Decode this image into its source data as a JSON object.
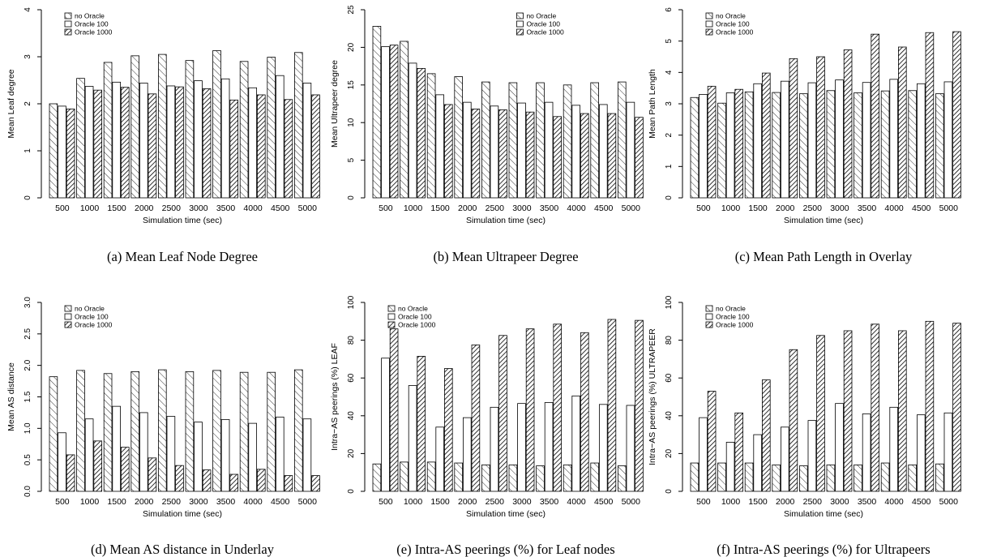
{
  "chart_data": [
    {
      "type": "bar",
      "caption": "(a) Mean Leaf Node Degree",
      "xlabel": "Simulation time (sec)",
      "ylabel": "Mean Leaf degree",
      "ylim": [
        0,
        4
      ],
      "yticks": [
        "0",
        "1",
        "2",
        "3",
        "4"
      ],
      "categories": [
        "500",
        "1000",
        "1500",
        "2000",
        "2500",
        "3000",
        "3500",
        "4000",
        "4500",
        "5000"
      ],
      "legend_position": "top-left",
      "series": [
        {
          "name": "no Oracle",
          "values": [
            2.0,
            2.54,
            2.88,
            3.02,
            3.05,
            2.92,
            3.13,
            2.9,
            2.99,
            3.09
          ]
        },
        {
          "name": "Oracle 100",
          "values": [
            1.95,
            2.37,
            2.46,
            2.44,
            2.38,
            2.49,
            2.53,
            2.34,
            2.6,
            2.44
          ]
        },
        {
          "name": "Oracle 1000",
          "values": [
            1.89,
            2.29,
            2.35,
            2.21,
            2.36,
            2.32,
            2.08,
            2.19,
            2.09,
            2.19
          ]
        }
      ]
    },
    {
      "type": "bar",
      "caption": "(b) Mean Ultrapeer Degree",
      "xlabel": "Simulation time (sec)",
      "ylabel": "Mean Ultrapeer degree",
      "ylim": [
        0,
        25
      ],
      "yticks": [
        "0",
        "5",
        "10",
        "15",
        "20",
        "25"
      ],
      "categories": [
        "500",
        "1000",
        "1500",
        "2000",
        "2500",
        "3000",
        "3500",
        "4000",
        "4500",
        "5000"
      ],
      "legend_position": "top-right",
      "series": [
        {
          "name": "no Oracle",
          "values": [
            22.8,
            20.8,
            16.5,
            16.1,
            15.4,
            15.3,
            15.3,
            15.0,
            15.3,
            15.4
          ]
        },
        {
          "name": "Oracle 100",
          "values": [
            20.1,
            17.9,
            13.7,
            12.7,
            12.2,
            12.6,
            12.7,
            12.3,
            12.4,
            12.7
          ]
        },
        {
          "name": "Oracle 1000",
          "values": [
            20.3,
            17.2,
            12.4,
            11.8,
            11.7,
            11.4,
            10.8,
            11.2,
            11.2,
            10.7
          ]
        }
      ]
    },
    {
      "type": "bar",
      "caption": "(c) Mean Path Length in Overlay",
      "xlabel": "Simulation time (sec)",
      "ylabel": "Mean Path Length",
      "ylim": [
        0,
        6
      ],
      "yticks": [
        "0",
        "1",
        "2",
        "3",
        "4",
        "5",
        "6"
      ],
      "categories": [
        "500",
        "1000",
        "1500",
        "2000",
        "2500",
        "3000",
        "3500",
        "4000",
        "4500",
        "5000"
      ],
      "legend_position": "top-left",
      "series": [
        {
          "name": "no Oracle",
          "values": [
            3.2,
            3.02,
            3.38,
            3.36,
            3.32,
            3.42,
            3.35,
            3.41,
            3.42,
            3.32
          ]
        },
        {
          "name": "Oracle 100",
          "values": [
            3.3,
            3.35,
            3.64,
            3.72,
            3.67,
            3.76,
            3.68,
            3.78,
            3.64,
            3.7
          ]
        },
        {
          "name": "Oracle 1000",
          "values": [
            3.56,
            3.46,
            3.98,
            4.44,
            4.5,
            4.72,
            5.22,
            4.81,
            5.27,
            5.3
          ]
        }
      ]
    },
    {
      "type": "bar",
      "caption": "(d) Mean AS distance in Underlay",
      "xlabel": "Simulation time (sec)",
      "ylabel": "Mean AS distance",
      "ylim": [
        0,
        3
      ],
      "yticks": [
        "0.0",
        "0.5",
        "1.0",
        "1.5",
        "2.0",
        "2.5",
        "3.0"
      ],
      "categories": [
        "500",
        "1000",
        "1500",
        "2000",
        "2500",
        "3000",
        "3500",
        "4000",
        "4500",
        "5000"
      ],
      "legend_position": "top-left",
      "series": [
        {
          "name": "no Oracle",
          "values": [
            1.82,
            1.92,
            1.87,
            1.9,
            1.93,
            1.9,
            1.92,
            1.89,
            1.89,
            1.93
          ]
        },
        {
          "name": "Oracle 100",
          "values": [
            0.93,
            1.15,
            1.35,
            1.25,
            1.19,
            1.1,
            1.14,
            1.08,
            1.18,
            1.15
          ]
        },
        {
          "name": "Oracle 1000",
          "values": [
            0.58,
            0.8,
            0.7,
            0.53,
            0.41,
            0.34,
            0.27,
            0.35,
            0.25,
            0.25
          ]
        }
      ]
    },
    {
      "type": "bar",
      "caption": "(e) Intra-AS peerings (%) for Leaf nodes",
      "xlabel": "Simulation time (sec)",
      "ylabel": "Intra−AS peerings (%) LEAF",
      "ylim": [
        0,
        100
      ],
      "yticks": [
        "0",
        "20",
        "40",
        "60",
        "80",
        "100"
      ],
      "categories": [
        "500",
        "1000",
        "1500",
        "2000",
        "2500",
        "3000",
        "3500",
        "4000",
        "4500",
        "5000"
      ],
      "legend_position": "top-left",
      "series": [
        {
          "name": "no Oracle",
          "values": [
            14.5,
            15.5,
            15.5,
            15,
            14,
            14,
            13.5,
            14,
            15,
            13.5
          ]
        },
        {
          "name": "Oracle 100",
          "values": [
            70.5,
            56,
            34,
            39,
            44.5,
            46.5,
            47,
            50.5,
            46,
            45.5
          ]
        },
        {
          "name": "Oracle 1000",
          "values": [
            86,
            71.5,
            65,
            77.5,
            82.5,
            86,
            88.5,
            84,
            91,
            90.5
          ]
        }
      ]
    },
    {
      "type": "bar",
      "caption": "(f) Intra-AS peerings (%) for Ultrapeers",
      "xlabel": "Simulation time (sec)",
      "ylabel": "Intra−AS peerings (%) ULTRAPEER",
      "ylim": [
        0,
        100
      ],
      "yticks": [
        "0",
        "20",
        "40",
        "60",
        "80",
        "100"
      ],
      "categories": [
        "500",
        "1000",
        "1500",
        "2000",
        "2500",
        "3000",
        "3500",
        "4000",
        "4500",
        "5000"
      ],
      "legend_position": "top-left",
      "series": [
        {
          "name": "no Oracle",
          "values": [
            15,
            15,
            15,
            14,
            13.5,
            14,
            14,
            15,
            14,
            14.5
          ]
        },
        {
          "name": "Oracle 100",
          "values": [
            39,
            26,
            30,
            34,
            37.5,
            46.5,
            41,
            44.5,
            40.5,
            41.5
          ]
        },
        {
          "name": "Oracle 1000",
          "values": [
            53,
            41.5,
            59,
            75,
            82.5,
            85,
            88.5,
            85,
            90,
            89
          ]
        }
      ]
    }
  ]
}
